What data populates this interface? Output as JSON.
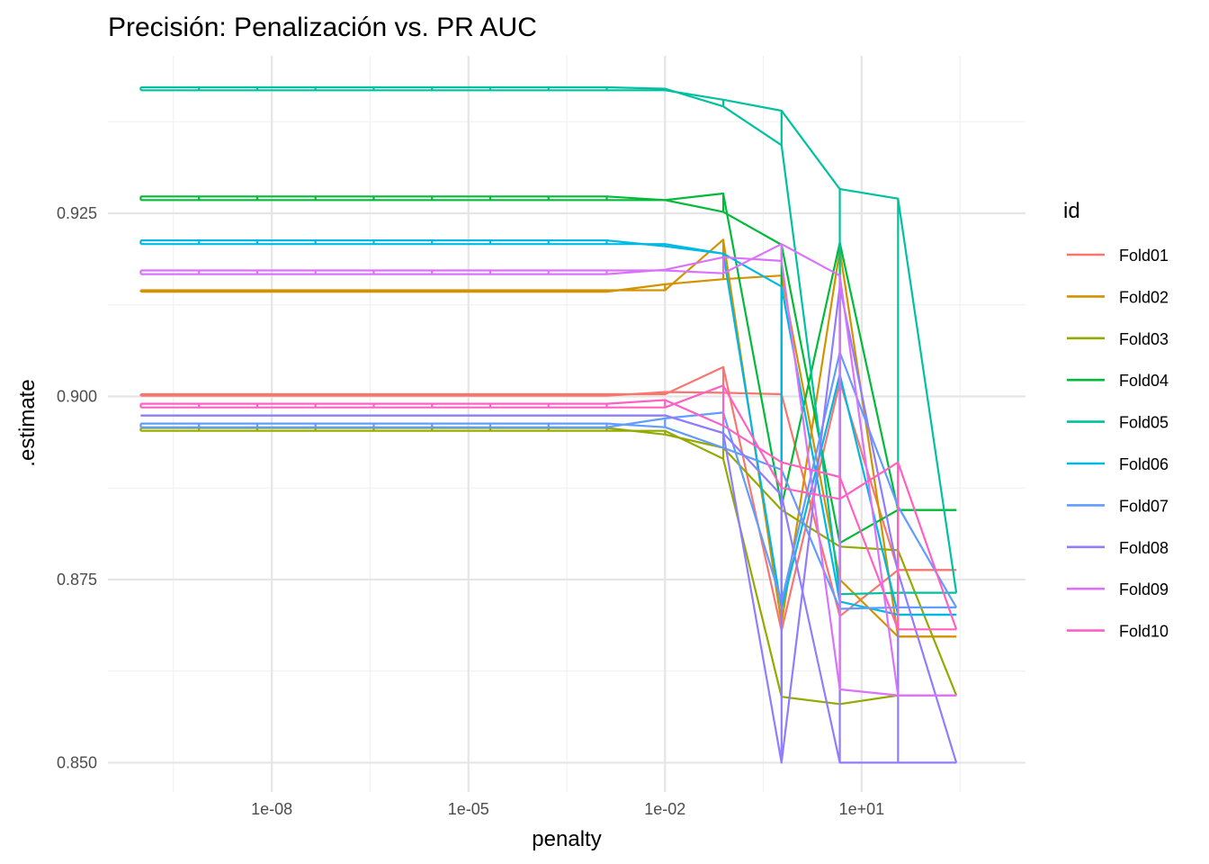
{
  "chart_data": {
    "type": "line",
    "title": "Precisión: Penalización vs. PR AUC",
    "xlabel": "penalty",
    "ylabel": ".estimate",
    "x_scale": "log10",
    "xlim_log10": [
      -10.5,
      3.5
    ],
    "ylim": [
      0.846,
      0.9465
    ],
    "x_ticks": [
      {
        "value": 1e-08,
        "label": "1e-08"
      },
      {
        "value": 1e-05,
        "label": "1e-05"
      },
      {
        "value": 0.01,
        "label": "1e-02"
      },
      {
        "value": 10,
        "label": "1e+01"
      }
    ],
    "y_ticks": [
      {
        "value": 0.85,
        "label": "0.850"
      },
      {
        "value": 0.875,
        "label": "0.875"
      },
      {
        "value": 0.9,
        "label": "0.900"
      },
      {
        "value": 0.925,
        "label": "0.925"
      }
    ],
    "grid": true,
    "legend": {
      "title": "id",
      "position": "right"
    },
    "x_penalties_log10": [
      -10,
      -9.1111,
      -8.2222,
      -7.3333,
      -6.4444,
      -5.5556,
      -4.6667,
      -3.7778,
      -2.8889,
      -2,
      -1.1111,
      -0.2222,
      0.6667,
      1.5556,
      2.4444
    ],
    "series": [
      {
        "name": "Fold01",
        "color": "#F8766D",
        "values": [
          [
            0.9001,
            0.9001,
            0.9001,
            0.9001,
            0.9001,
            0.9001,
            0.9001,
            0.9001,
            0.9001,
            0.9006,
            0.9005,
            0.9003,
            0.87,
            0.8763,
            0.8763
          ],
          [
            0.9003,
            0.9003,
            0.9003,
            0.9003,
            0.9003,
            0.9003,
            0.9003,
            0.9003,
            0.9003,
            0.9003,
            0.904,
            0.868,
            0.902,
            0.8763,
            0.8763
          ]
        ]
      },
      {
        "name": "Fold02",
        "color": "#D39200",
        "values": [
          [
            0.9143,
            0.9143,
            0.9143,
            0.9143,
            0.9143,
            0.9143,
            0.9143,
            0.9143,
            0.9143,
            0.9153,
            0.916,
            0.9165,
            0.875,
            0.8672,
            0.8672
          ],
          [
            0.9145,
            0.9145,
            0.9145,
            0.9145,
            0.9145,
            0.9145,
            0.9145,
            0.9145,
            0.9145,
            0.9145,
            0.9214,
            0.869,
            0.92,
            0.8672,
            0.8672
          ]
        ]
      },
      {
        "name": "Fold03",
        "color": "#93AA00",
        "values": [
          [
            0.8957,
            0.8957,
            0.8957,
            0.8957,
            0.8957,
            0.8957,
            0.8957,
            0.8957,
            0.8957,
            0.8948,
            0.893,
            0.8845,
            0.8795,
            0.879,
            0.8592
          ],
          [
            0.8953,
            0.8953,
            0.8953,
            0.8953,
            0.8953,
            0.8953,
            0.8953,
            0.8953,
            0.8953,
            0.8953,
            0.8915,
            0.859,
            0.858,
            0.8592,
            0.8592
          ]
        ]
      },
      {
        "name": "Fold04",
        "color": "#00BA38",
        "values": [
          [
            0.9273,
            0.9273,
            0.9273,
            0.9273,
            0.9273,
            0.9273,
            0.9273,
            0.9273,
            0.9273,
            0.9268,
            0.9252,
            0.9207,
            0.88,
            0.8845,
            0.8845
          ],
          [
            0.9268,
            0.9268,
            0.9268,
            0.9268,
            0.9268,
            0.9268,
            0.9268,
            0.9268,
            0.9268,
            0.9268,
            0.9277,
            0.885,
            0.921,
            0.8845,
            0.8845
          ]
        ]
      },
      {
        "name": "Fold05",
        "color": "#00C19F",
        "values": [
          [
            0.9422,
            0.9422,
            0.9422,
            0.9422,
            0.9422,
            0.9422,
            0.9422,
            0.9422,
            0.9422,
            0.942,
            0.9396,
            0.9343,
            0.873,
            0.8732,
            0.8732
          ],
          [
            0.9418,
            0.9418,
            0.9418,
            0.9418,
            0.9418,
            0.9418,
            0.9418,
            0.9418,
            0.9418,
            0.9418,
            0.9405,
            0.939,
            0.9283,
            0.927,
            0.8732
          ]
        ]
      },
      {
        "name": "Fold06",
        "color": "#00B9E3",
        "values": [
          [
            0.9213,
            0.9213,
            0.9213,
            0.9213,
            0.9213,
            0.9213,
            0.9213,
            0.9213,
            0.9213,
            0.9205,
            0.9195,
            0.915,
            0.872,
            0.8702,
            0.8702
          ],
          [
            0.9208,
            0.9208,
            0.9208,
            0.9208,
            0.9208,
            0.9208,
            0.9208,
            0.9208,
            0.9208,
            0.9208,
            0.9195,
            0.871,
            0.903,
            0.8702,
            0.8702
          ]
        ]
      },
      {
        "name": "Fold07",
        "color": "#619CFF",
        "values": [
          [
            0.8963,
            0.8963,
            0.8963,
            0.8963,
            0.8963,
            0.8963,
            0.8963,
            0.8963,
            0.8963,
            0.8958,
            0.893,
            0.89,
            0.871,
            0.8712,
            0.8712
          ],
          [
            0.8958,
            0.8958,
            0.8958,
            0.8958,
            0.8958,
            0.8958,
            0.8958,
            0.8958,
            0.8958,
            0.897,
            0.8978,
            0.872,
            0.906,
            0.885,
            0.8712
          ]
        ]
      },
      {
        "name": "Fold08",
        "color": "#8F7CFF",
        "values": [
          [
            0.8974,
            0.8974,
            0.8974,
            0.8974,
            0.8974,
            0.8974,
            0.8974,
            0.8974,
            0.8974,
            0.8974,
            0.895,
            0.8865,
            0.85,
            0.85,
            0.85
          ],
          [
            0.8974,
            0.8974,
            0.8974,
            0.8974,
            0.8974,
            0.8974,
            0.8974,
            0.8974,
            0.8974,
            0.8974,
            0.895,
            0.85,
            0.915,
            0.876,
            0.85
          ]
        ]
      },
      {
        "name": "Fold09",
        "color": "#DB72FB",
        "values": [
          [
            0.9167,
            0.9167,
            0.9167,
            0.9167,
            0.9167,
            0.9167,
            0.9167,
            0.9167,
            0.9167,
            0.9173,
            0.919,
            0.9185,
            0.86,
            0.8592,
            0.8592
          ],
          [
            0.9172,
            0.9172,
            0.9172,
            0.9172,
            0.9172,
            0.9172,
            0.9172,
            0.9172,
            0.9172,
            0.9172,
            0.9168,
            0.9208,
            0.9165,
            0.8592,
            0.8592
          ]
        ]
      },
      {
        "name": "Fold10",
        "color": "#FF61C3",
        "values": [
          [
            0.899,
            0.899,
            0.899,
            0.899,
            0.899,
            0.899,
            0.899,
            0.899,
            0.899,
            0.8995,
            0.896,
            0.891,
            0.889,
            0.8682,
            0.8682
          ],
          [
            0.8985,
            0.8985,
            0.8985,
            0.8985,
            0.8985,
            0.8985,
            0.8985,
            0.8985,
            0.8985,
            0.8985,
            0.9015,
            0.8875,
            0.886,
            0.891,
            0.8682
          ]
        ]
      }
    ]
  }
}
